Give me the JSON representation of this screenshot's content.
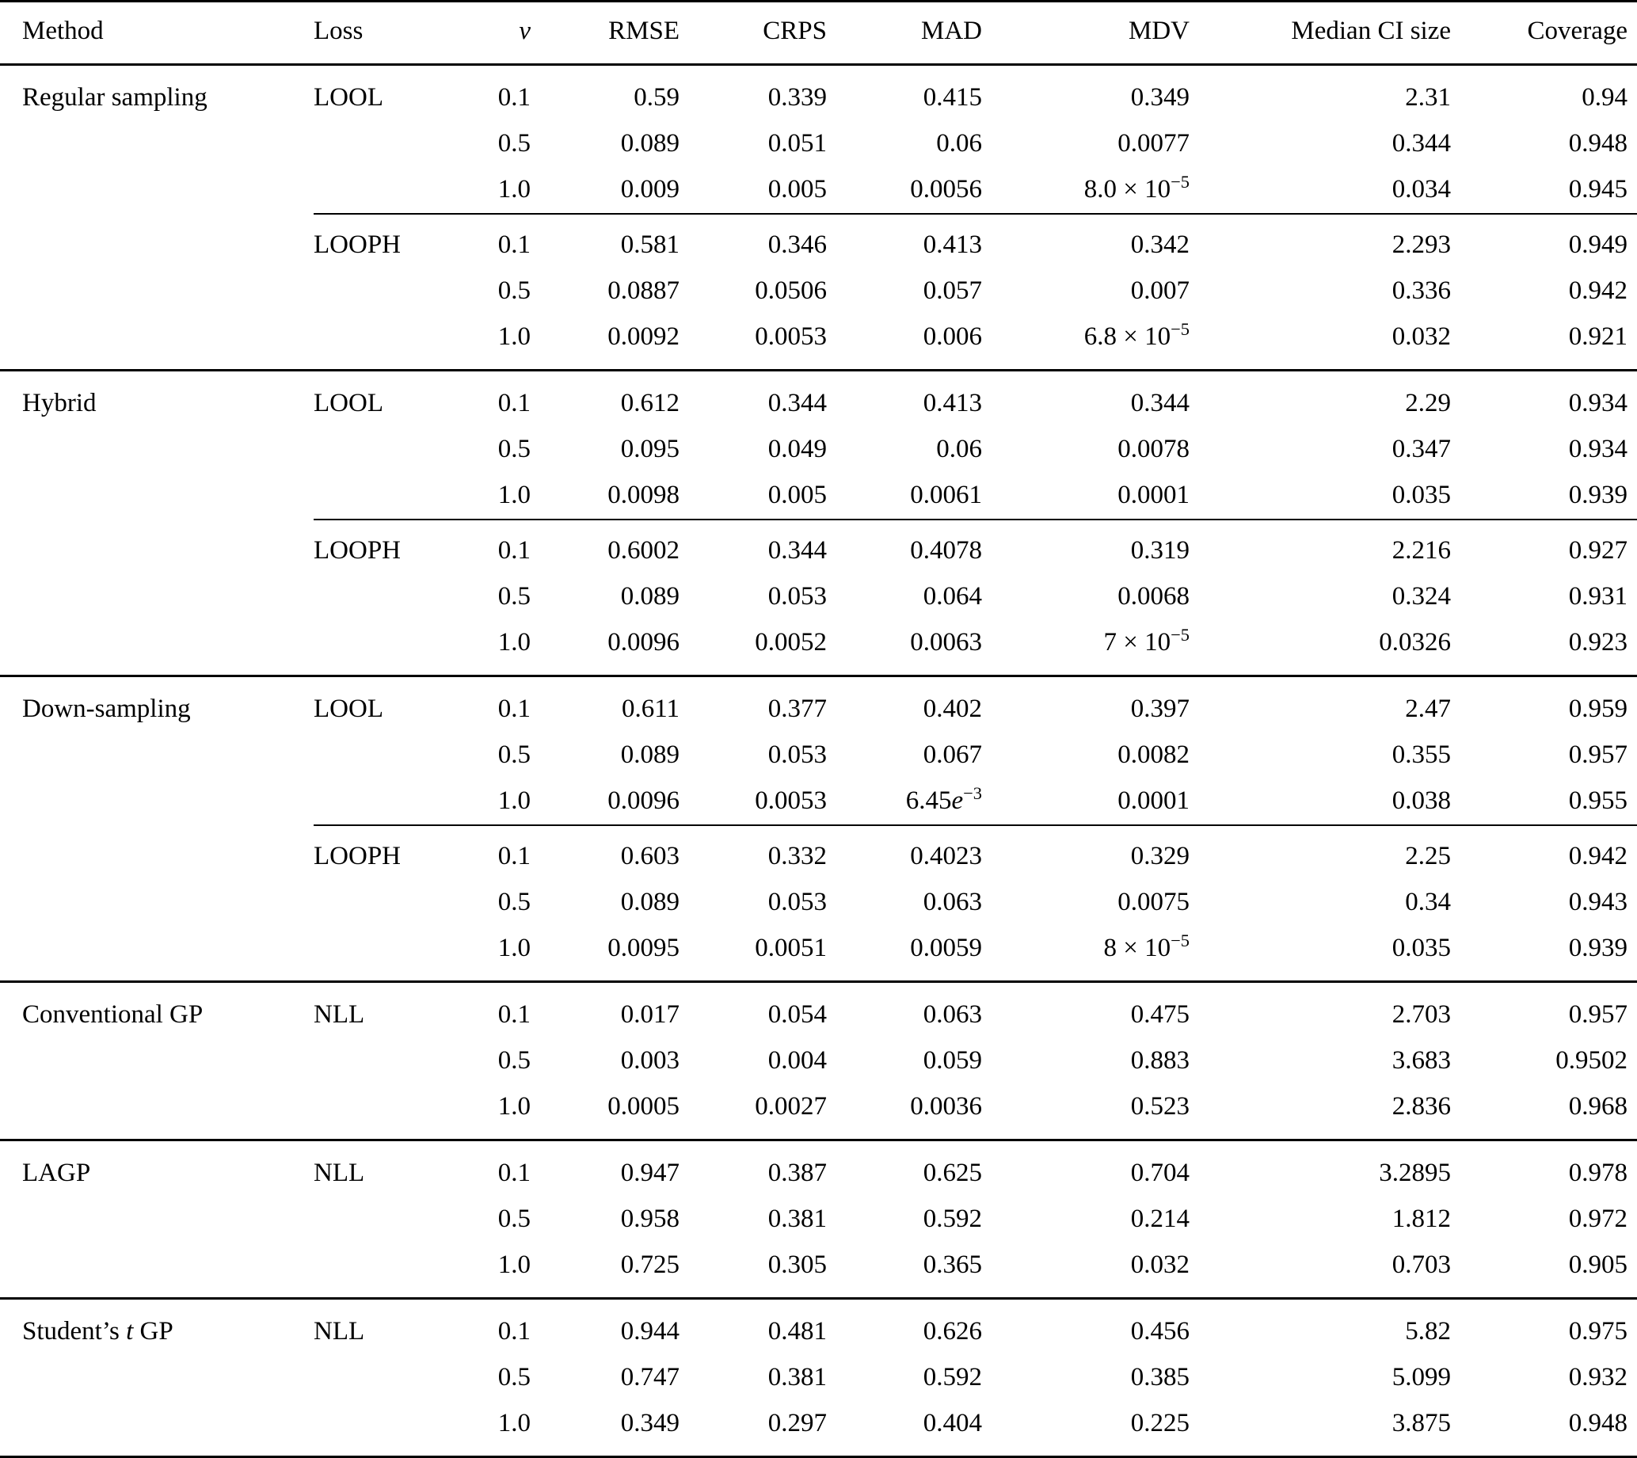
{
  "table": {
    "columns": [
      {
        "label": "Method",
        "align": "left",
        "italic": false
      },
      {
        "label": "Loss",
        "align": "left",
        "italic": false
      },
      {
        "label": "ν",
        "align": "right",
        "italic": true
      },
      {
        "label": "RMSE",
        "align": "right",
        "italic": false
      },
      {
        "label": "CRPS",
        "align": "right",
        "italic": false
      },
      {
        "label": "MAD",
        "align": "right",
        "italic": false
      },
      {
        "label": "MDV",
        "align": "right",
        "italic": false
      },
      {
        "label": "Median CI size",
        "align": "right",
        "italic": false
      },
      {
        "label": "Coverage",
        "align": "right",
        "italic": false
      }
    ],
    "sections": [
      {
        "method": "Regular sampling",
        "subrule_rows": [
          3
        ],
        "rows": [
          [
            "Regular sampling",
            "LOOL",
            "0.1",
            "0.59",
            "0.339",
            "0.415",
            "0.349",
            "2.31",
            "0.94"
          ],
          [
            "",
            "",
            "0.5",
            "0.089",
            "0.051",
            "0.06",
            "0.0077",
            "0.344",
            "0.948"
          ],
          [
            "",
            "",
            "1.0",
            "0.009",
            "0.005",
            "0.0056",
            "8.0 × 10<sup>−5</sup>",
            "0.034",
            "0.945"
          ],
          [
            "",
            "LOOPH",
            "0.1",
            "0.581",
            "0.346",
            "0.413",
            "0.342",
            "2.293",
            "0.949"
          ],
          [
            "",
            "",
            "0.5",
            "0.0887",
            "0.0506",
            "0.057",
            "0.007",
            "0.336",
            "0.942"
          ],
          [
            "",
            "",
            "1.0",
            "0.0092",
            "0.0053",
            "0.006",
            "6.8 × 10<sup>−5</sup>",
            "0.032",
            "0.921"
          ]
        ]
      },
      {
        "method": "Hybrid",
        "subrule_rows": [
          3
        ],
        "rows": [
          [
            "Hybrid",
            "LOOL",
            "0.1",
            "0.612",
            "0.344",
            "0.413",
            "0.344",
            "2.29",
            "0.934"
          ],
          [
            "",
            "",
            "0.5",
            "0.095",
            "0.049",
            "0.06",
            "0.0078",
            "0.347",
            "0.934"
          ],
          [
            "",
            "",
            "1.0",
            "0.0098",
            "0.005",
            "0.0061",
            "0.0001",
            "0.035",
            "0.939"
          ],
          [
            "",
            "LOOPH",
            "0.1",
            "0.6002",
            "0.344",
            "0.4078",
            "0.319",
            "2.216",
            "0.927"
          ],
          [
            "",
            "",
            "0.5",
            "0.089",
            "0.053",
            "0.064",
            "0.0068",
            "0.324",
            "0.931"
          ],
          [
            "",
            "",
            "1.0",
            "0.0096",
            "0.0052",
            "0.0063",
            "7 × 10<sup>−5</sup>",
            "0.0326",
            "0.923"
          ]
        ]
      },
      {
        "method": "Down-sampling",
        "subrule_rows": [
          3
        ],
        "rows": [
          [
            "Down-sampling",
            "LOOL",
            "0.1",
            "0.611",
            "0.377",
            "0.402",
            "0.397",
            "2.47",
            "0.959"
          ],
          [
            "",
            "",
            "0.5",
            "0.089",
            "0.053",
            "0.067",
            "0.0082",
            "0.355",
            "0.957"
          ],
          [
            "",
            "",
            "1.0",
            "0.0096",
            "0.0053",
            "6.45<i>e</i><sup>−3</sup>",
            "0.0001",
            "0.038",
            "0.955"
          ],
          [
            "",
            "LOOPH",
            "0.1",
            "0.603",
            "0.332",
            "0.4023",
            "0.329",
            "2.25",
            "0.942"
          ],
          [
            "",
            "",
            "0.5",
            "0.089",
            "0.053",
            "0.063",
            "0.0075",
            "0.34",
            "0.943"
          ],
          [
            "",
            "",
            "1.0",
            "0.0095",
            "0.0051",
            "0.0059",
            "8 × 10<sup>−5</sup>",
            "0.035",
            "0.939"
          ]
        ]
      },
      {
        "method": "Conventional GP",
        "subrule_rows": [],
        "rows": [
          [
            "Conventional GP",
            "NLL",
            "0.1",
            "0.017",
            "0.054",
            "0.063",
            "0.475",
            "2.703",
            "0.957"
          ],
          [
            "",
            "",
            "0.5",
            "0.003",
            "0.004",
            "0.059",
            "0.883",
            "3.683",
            "0.9502"
          ],
          [
            "",
            "",
            "1.0",
            "0.0005",
            "0.0027",
            "0.0036",
            "0.523",
            "2.836",
            "0.968"
          ]
        ]
      },
      {
        "method": "LAGP",
        "subrule_rows": [],
        "rows": [
          [
            "LAGP",
            "NLL",
            "0.1",
            "0.947",
            "0.387",
            "0.625",
            "0.704",
            "3.2895",
            "0.978"
          ],
          [
            "",
            "",
            "0.5",
            "0.958",
            "0.381",
            "0.592",
            "0.214",
            "1.812",
            "0.972"
          ],
          [
            "",
            "",
            "1.0",
            "0.725",
            "0.305",
            "0.365",
            "0.032",
            "0.703",
            "0.905"
          ]
        ]
      },
      {
        "method": "Student’s t GP",
        "method_html": "Student’s <i>t</i> GP",
        "subrule_rows": [],
        "rows": [
          [
            "Student’s <i>t</i> GP",
            "NLL",
            "0.1",
            "0.944",
            "0.481",
            "0.626",
            "0.456",
            "5.82",
            "0.975"
          ],
          [
            "",
            "",
            "0.5",
            "0.747",
            "0.381",
            "0.592",
            "0.385",
            "5.099",
            "0.932"
          ],
          [
            "",
            "",
            "1.0",
            "0.349",
            "0.297",
            "0.404",
            "0.225",
            "3.875",
            "0.948"
          ]
        ]
      }
    ]
  }
}
